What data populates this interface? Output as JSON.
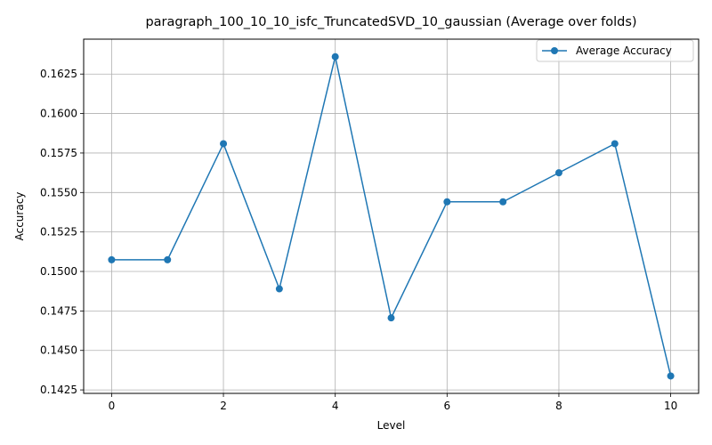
{
  "chart_data": {
    "type": "line",
    "title": "paragraph_100_10_10_isfc_TruncatedSVD_10_gaussian (Average over folds)",
    "xlabel": "Level",
    "ylabel": "Accuracy",
    "x": [
      0,
      1,
      2,
      3,
      4,
      5,
      6,
      7,
      8,
      9,
      10
    ],
    "series": [
      {
        "name": "Average Accuracy",
        "color": "#1f77b4",
        "marker": "circle",
        "values": [
          0.15074,
          0.15074,
          0.15809,
          0.1489,
          0.1636,
          0.14706,
          0.15441,
          0.15441,
          0.15625,
          0.15809,
          0.14338
        ]
      }
    ],
    "xlim": [
      -0.5,
      10.5
    ],
    "ylim": [
      0.14228,
      0.16471
    ],
    "xticks": [
      0,
      2,
      4,
      6,
      8,
      10
    ],
    "yticks": [
      0.1425,
      0.145,
      0.1475,
      0.15,
      0.1525,
      0.155,
      0.1575,
      0.16,
      0.1625
    ],
    "ytick_labels": [
      "0.1425",
      "0.1450",
      "0.1475",
      "0.1500",
      "0.1525",
      "0.1550",
      "0.1575",
      "0.1600",
      "0.1625"
    ],
    "grid": true,
    "legend": "top-right"
  }
}
